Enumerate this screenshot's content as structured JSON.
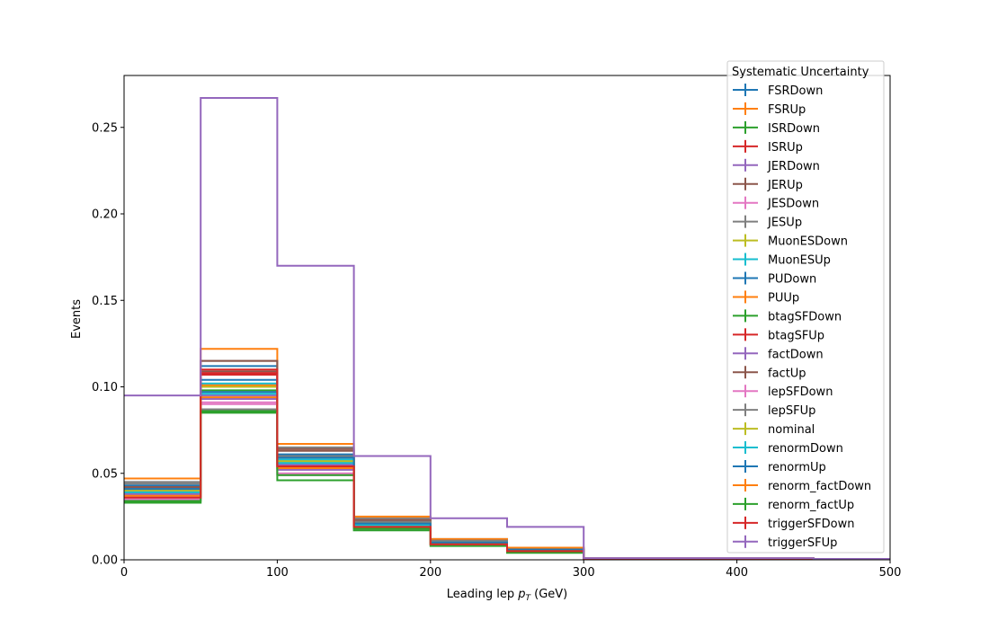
{
  "chart_data": {
    "type": "step",
    "xlabel_prefix": "Leading lep ",
    "xlabel_symbol": "p",
    "xlabel_subscript": "T",
    "xlabel_suffix": " (GeV)",
    "ylabel": "Events",
    "xlim": [
      0,
      500
    ],
    "ylim": [
      0,
      0.28
    ],
    "xticks": [
      "0",
      "100",
      "200",
      "300",
      "400",
      "500"
    ],
    "yticks": [
      "0.00",
      "0.05",
      "0.10",
      "0.15",
      "0.20",
      "0.25"
    ],
    "bin_edges": [
      0,
      50,
      100,
      150,
      200,
      250,
      300,
      350,
      400,
      450,
      500
    ],
    "legend_title": "Systematic Uncertainty",
    "legend_position": "top-right",
    "series": [
      {
        "name": "FSRDown",
        "color": "#1f77b4",
        "values": [
          0.043,
          0.112,
          0.061,
          0.022,
          0.011,
          0.006,
          0.0008,
          0.0008,
          0.0008,
          0.0005
        ]
      },
      {
        "name": "FSRUp",
        "color": "#ff7f0e",
        "values": [
          0.041,
          0.101,
          0.058,
          0.021,
          0.01,
          0.006,
          0.0008,
          0.0008,
          0.0008,
          0.0005
        ]
      },
      {
        "name": "ISRDown",
        "color": "#2ca02c",
        "values": [
          0.038,
          0.098,
          0.056,
          0.02,
          0.01,
          0.005,
          0.0007,
          0.0007,
          0.0007,
          0.0004
        ]
      },
      {
        "name": "ISRUp",
        "color": "#d62728",
        "values": [
          0.04,
          0.107,
          0.054,
          0.02,
          0.01,
          0.006,
          0.0008,
          0.0008,
          0.0008,
          0.0005
        ]
      },
      {
        "name": "JERDown",
        "color": "#9467bd",
        "values": [
          0.037,
          0.093,
          0.052,
          0.019,
          0.009,
          0.005,
          0.0007,
          0.0007,
          0.0007,
          0.0004
        ]
      },
      {
        "name": "JERUp",
        "color": "#8c564b",
        "values": [
          0.039,
          0.109,
          0.063,
          0.023,
          0.011,
          0.006,
          0.0008,
          0.0008,
          0.0008,
          0.0005
        ]
      },
      {
        "name": "JESDown",
        "color": "#e377c2",
        "values": [
          0.036,
          0.091,
          0.05,
          0.018,
          0.009,
          0.005,
          0.0007,
          0.0007,
          0.0007,
          0.0004
        ]
      },
      {
        "name": "JESUp",
        "color": "#7f7f7f",
        "values": [
          0.044,
          0.115,
          0.065,
          0.024,
          0.012,
          0.007,
          0.0009,
          0.0009,
          0.0009,
          0.0005
        ]
      },
      {
        "name": "MuonESDown",
        "color": "#bcbd22",
        "values": [
          0.04,
          0.1,
          0.057,
          0.021,
          0.01,
          0.006,
          0.0008,
          0.0008,
          0.0008,
          0.0005
        ]
      },
      {
        "name": "MuonESUp",
        "color": "#17becf",
        "values": [
          0.041,
          0.102,
          0.058,
          0.021,
          0.01,
          0.006,
          0.0008,
          0.0008,
          0.0008,
          0.0005
        ]
      },
      {
        "name": "PUDown",
        "color": "#1f77b4",
        "values": [
          0.039,
          0.097,
          0.055,
          0.02,
          0.01,
          0.005,
          0.0007,
          0.0007,
          0.0007,
          0.0004
        ]
      },
      {
        "name": "PUUp",
        "color": "#ff7f0e",
        "values": [
          0.047,
          0.122,
          0.067,
          0.025,
          0.012,
          0.007,
          0.0009,
          0.0009,
          0.0009,
          0.0005
        ]
      },
      {
        "name": "btagSFDown",
        "color": "#2ca02c",
        "values": [
          0.033,
          0.085,
          0.046,
          0.017,
          0.008,
          0.004,
          0.0006,
          0.0006,
          0.0006,
          0.0004
        ]
      },
      {
        "name": "btagSFUp",
        "color": "#d62728",
        "values": [
          0.042,
          0.108,
          0.053,
          0.02,
          0.01,
          0.006,
          0.0008,
          0.0008,
          0.0008,
          0.0005
        ]
      },
      {
        "name": "factDown",
        "color": "#9467bd",
        "values": [
          0.038,
          0.095,
          0.055,
          0.02,
          0.01,
          0.005,
          0.0007,
          0.0007,
          0.0007,
          0.0004
        ]
      },
      {
        "name": "factUp",
        "color": "#8c564b",
        "values": [
          0.042,
          0.115,
          0.064,
          0.023,
          0.011,
          0.006,
          0.0008,
          0.0008,
          0.0008,
          0.0005
        ]
      },
      {
        "name": "lepSFDown",
        "color": "#e377c2",
        "values": [
          0.035,
          0.09,
          0.049,
          0.018,
          0.009,
          0.005,
          0.0007,
          0.0007,
          0.0007,
          0.0004
        ]
      },
      {
        "name": "lepSFUp",
        "color": "#7f7f7f",
        "values": [
          0.045,
          0.087,
          0.06,
          0.022,
          0.011,
          0.006,
          0.0008,
          0.0008,
          0.0008,
          0.0005
        ]
      },
      {
        "name": "nominal",
        "color": "#bcbd22",
        "values": [
          0.04,
          0.1,
          0.057,
          0.021,
          0.01,
          0.006,
          0.0008,
          0.0008,
          0.0008,
          0.0005
        ]
      },
      {
        "name": "renormDown",
        "color": "#17becf",
        "values": [
          0.039,
          0.096,
          0.056,
          0.02,
          0.01,
          0.005,
          0.0007,
          0.0007,
          0.0007,
          0.0004
        ]
      },
      {
        "name": "renormUp",
        "color": "#1f77b4",
        "values": [
          0.041,
          0.104,
          0.059,
          0.021,
          0.01,
          0.006,
          0.0008,
          0.0008,
          0.0008,
          0.0005
        ]
      },
      {
        "name": "renorm_factDown",
        "color": "#ff7f0e",
        "values": [
          0.037,
          0.094,
          0.053,
          0.019,
          0.009,
          0.005,
          0.0007,
          0.0007,
          0.0007,
          0.0004
        ]
      },
      {
        "name": "renorm_factUp",
        "color": "#2ca02c",
        "values": [
          0.034,
          0.086,
          0.049,
          0.018,
          0.009,
          0.005,
          0.0006,
          0.0006,
          0.0006,
          0.0004
        ]
      },
      {
        "name": "triggerSFDown",
        "color": "#d62728",
        "values": [
          0.036,
          0.11,
          0.054,
          0.019,
          0.009,
          0.005,
          0.0007,
          0.0007,
          0.0007,
          0.0004
        ]
      },
      {
        "name": "triggerSFUp",
        "color": "#9467bd",
        "values": [
          0.095,
          0.267,
          0.17,
          0.06,
          0.024,
          0.019,
          0.001,
          0.001,
          0.001,
          0.0005
        ]
      }
    ]
  }
}
